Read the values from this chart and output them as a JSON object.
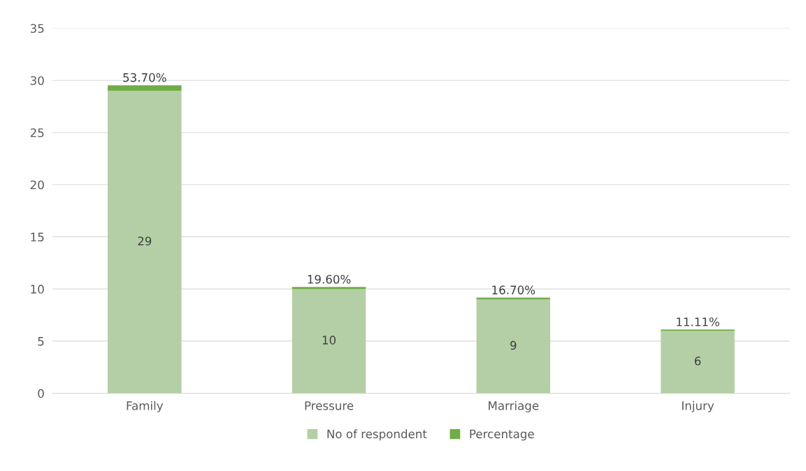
{
  "chart_data": {
    "type": "bar",
    "stacked": true,
    "categories": [
      "Family",
      "Pressure",
      "Marriage",
      "Injury"
    ],
    "series": [
      {
        "name": "No of respondent",
        "color": "#b4cfa5",
        "values": [
          29,
          10,
          9,
          6
        ],
        "value_labels": [
          "29",
          "10",
          "9",
          "6"
        ]
      },
      {
        "name": "Percentage",
        "color": "#70ad47",
        "values": [
          0.537,
          0.196,
          0.167,
          0.1111
        ],
        "value_labels": [
          "53.70%",
          "19.60%",
          "16.70%",
          "11.11%"
        ]
      }
    ],
    "ylim": [
      0,
      35
    ],
    "yticks": [
      0,
      5,
      10,
      15,
      20,
      25,
      30,
      35
    ],
    "grid": "y",
    "legend": "bottom"
  }
}
